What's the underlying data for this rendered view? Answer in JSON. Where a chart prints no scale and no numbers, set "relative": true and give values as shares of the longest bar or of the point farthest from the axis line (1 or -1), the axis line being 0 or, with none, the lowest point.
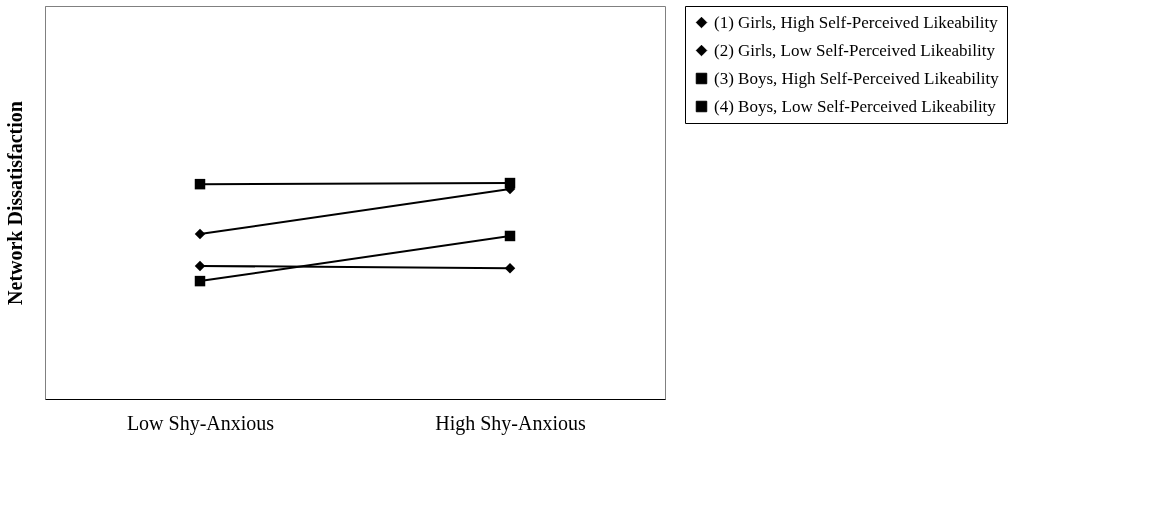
{
  "chart_data": {
    "type": "line",
    "relative": true,
    "ylabel": "Network Dissatisfaction",
    "categories": [
      "Low Shy-Anxious",
      "High Shy-Anxious"
    ],
    "series": [
      {
        "name": "(1) Girls, High Self-Perceived Likeability",
        "color": "#000000",
        "marker": "diamond",
        "values": [
          0.616,
          0.606
        ]
      },
      {
        "name": "(2) Girls, Low Self-Perceived Likeability",
        "color": "#000000",
        "marker": "diamond",
        "values": [
          0.764,
          0.972
        ]
      },
      {
        "name": "(3) Boys, High Self-Perceived Likeability",
        "color": "#000000",
        "marker": "square",
        "values": [
          0.546,
          0.755
        ]
      },
      {
        "name": "(4) Boys, Low Self-Perceived Likeability",
        "color": "#000000",
        "marker": "square",
        "values": [
          0.995,
          1.0
        ]
      }
    ],
    "legend": "right",
    "grid": false,
    "line_style": "solid"
  }
}
